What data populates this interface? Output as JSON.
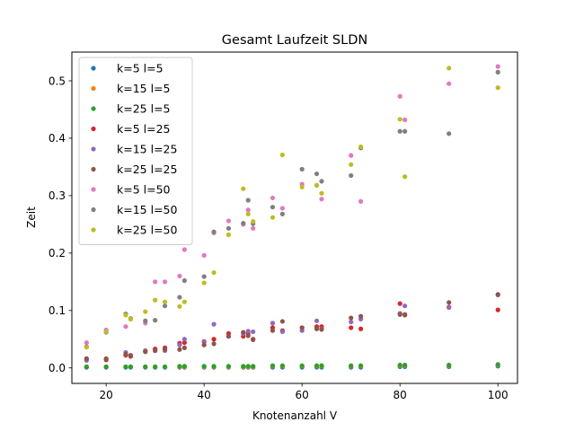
{
  "chart_data": {
    "type": "scatter",
    "title": "Gesamt Laufzeit SLDN",
    "xlabel": "Knotenanzahl V",
    "ylabel": "Zeit",
    "xlim": [
      13,
      104
    ],
    "ylim": [
      -0.027,
      0.55
    ],
    "xticks": [
      20,
      40,
      60,
      80,
      100
    ],
    "yticks": [
      0.0,
      0.1,
      0.2,
      0.3,
      0.4,
      0.5
    ],
    "ytick_labels": [
      "0.0",
      "0.1",
      "0.2",
      "0.3",
      "0.4",
      "0.5"
    ],
    "grid": false,
    "legend_position": "upper-left",
    "x": [
      16,
      20,
      24,
      25,
      28,
      30,
      32,
      35,
      36,
      40,
      42,
      45,
      48,
      49,
      50,
      54,
      56,
      60,
      63,
      64,
      70,
      72,
      80,
      81,
      90,
      100
    ],
    "series": [
      {
        "name": "k=5 l=5",
        "color": "#1f77b4",
        "values": [
          0.001,
          0.001,
          0.001,
          0.001,
          0.001,
          0.001,
          0.001,
          0.001,
          0.001,
          0.001,
          0.001,
          0.001,
          0.001,
          0.001,
          0.001,
          0.001,
          0.001,
          0.001,
          0.001,
          0.001,
          0.001,
          0.001,
          0.002,
          0.002,
          0.002,
          0.003
        ]
      },
      {
        "name": "k=15 l=5",
        "color": "#ff7f0e",
        "values": [
          0.002,
          0.002,
          0.002,
          0.002,
          0.002,
          0.002,
          0.002,
          0.002,
          0.002,
          0.002,
          0.002,
          0.002,
          0.002,
          0.002,
          0.002,
          0.003,
          0.003,
          0.003,
          0.003,
          0.003,
          0.003,
          0.003,
          0.004,
          0.004,
          0.004,
          0.005
        ]
      },
      {
        "name": "k=25 l=5",
        "color": "#2ca02c",
        "values": [
          0.002,
          0.002,
          0.002,
          0.002,
          0.002,
          0.002,
          0.002,
          0.003,
          0.003,
          0.003,
          0.003,
          0.003,
          0.003,
          0.003,
          0.003,
          0.004,
          0.004,
          0.004,
          0.004,
          0.004,
          0.004,
          0.004,
          0.005,
          0.005,
          0.005,
          0.006
        ]
      },
      {
        "name": "k=5 l=25",
        "color": "#d62728",
        "values": [
          0.016,
          0.014,
          0.022,
          0.02,
          0.03,
          0.033,
          0.035,
          0.043,
          0.044,
          0.046,
          0.05,
          0.06,
          0.055,
          0.06,
          0.05,
          0.07,
          0.065,
          0.07,
          0.072,
          0.072,
          0.07,
          0.068,
          0.112,
          0.093,
          0.106,
          0.101
        ]
      },
      {
        "name": "k=15 l=25",
        "color": "#9467bd",
        "values": [
          0.013,
          0.016,
          0.027,
          0.022,
          0.029,
          0.03,
          0.03,
          0.04,
          0.05,
          0.045,
          0.076,
          0.055,
          0.06,
          0.064,
          0.063,
          0.078,
          0.063,
          0.065,
          0.082,
          0.068,
          0.08,
          0.085,
          0.095,
          0.108,
          0.105,
          0.127
        ]
      },
      {
        "name": "k=25 l=25",
        "color": "#8c564b",
        "values": [
          0.016,
          0.016,
          0.024,
          0.022,
          0.028,
          0.03,
          0.032,
          0.032,
          0.035,
          0.04,
          0.042,
          0.055,
          0.062,
          0.056,
          0.049,
          0.065,
          0.081,
          0.07,
          0.068,
          0.067,
          0.087,
          0.09,
          0.093,
          0.092,
          0.114,
          0.128
        ]
      },
      {
        "name": "k=5 l=50",
        "color": "#e377c2",
        "values": [
          0.044,
          0.066,
          0.072,
          0.085,
          0.078,
          0.15,
          0.15,
          0.16,
          0.206,
          0.196,
          0.235,
          0.256,
          0.25,
          0.275,
          0.243,
          0.296,
          0.278,
          0.32,
          0.318,
          0.294,
          0.37,
          0.29,
          0.473,
          0.432,
          0.495,
          0.525
        ]
      },
      {
        "name": "k=15 l=50",
        "color": "#7f7f7f",
        "values": [
          0.037,
          0.062,
          0.094,
          0.086,
          0.082,
          0.083,
          0.108,
          0.123,
          0.152,
          0.159,
          0.237,
          0.243,
          0.252,
          0.292,
          0.251,
          0.28,
          0.268,
          0.346,
          0.338,
          0.325,
          0.335,
          0.383,
          0.412,
          0.412,
          0.408,
          0.515
        ]
      },
      {
        "name": "k=25 l=50",
        "color": "#bcbd22",
        "values": [
          0.036,
          0.063,
          0.092,
          0.085,
          0.098,
          0.118,
          0.115,
          0.107,
          0.115,
          0.148,
          0.166,
          0.232,
          0.312,
          0.268,
          0.255,
          0.262,
          0.371,
          0.315,
          0.318,
          0.304,
          0.354,
          0.385,
          0.433,
          0.333,
          0.522,
          0.488
        ]
      }
    ]
  }
}
